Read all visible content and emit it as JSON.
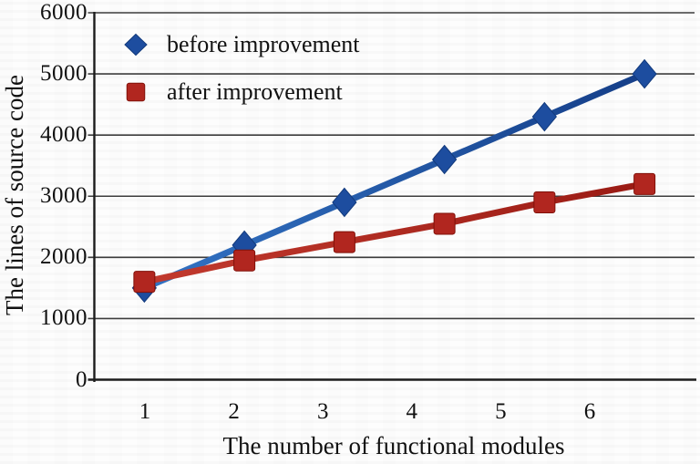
{
  "chart_data": {
    "type": "line",
    "title": "",
    "xlabel": "The number of functional modules",
    "ylabel": "The lines of source code",
    "x": [
      1,
      2,
      3,
      4,
      5,
      6
    ],
    "x_tick_labels": [
      "1",
      "2",
      "3",
      "4",
      "5",
      "6"
    ],
    "y_tick_labels": [
      "6000",
      "5000",
      "4000",
      "3000",
      "2000",
      "1000",
      "0"
    ],
    "ylim": [
      0,
      6000
    ],
    "y_tick_step": 1000,
    "grid": "horizontal-only",
    "legend_position": "top-left-inside",
    "series": [
      {
        "name": "before improvement",
        "marker": "diamond",
        "values": [
          1500,
          2200,
          2900,
          3600,
          4300,
          5000
        ],
        "color": "#1d4f9e",
        "color_start": "#3273c4",
        "color_end": "#153e88",
        "marker_color": "#1d4d9f",
        "marker_edge": "#123a7c"
      },
      {
        "name": "after improvement",
        "marker": "square",
        "values": [
          1600,
          1950,
          2250,
          2550,
          2900,
          3200
        ],
        "color": "#a92420",
        "color_start": "#c23a2e",
        "color_end": "#9a1b14",
        "marker_color": "#b1261f",
        "marker_edge": "#801008"
      }
    ],
    "axis_color": "#1c1c1c",
    "gridline_color": "#3c3c3c",
    "text_color": "#111111"
  }
}
